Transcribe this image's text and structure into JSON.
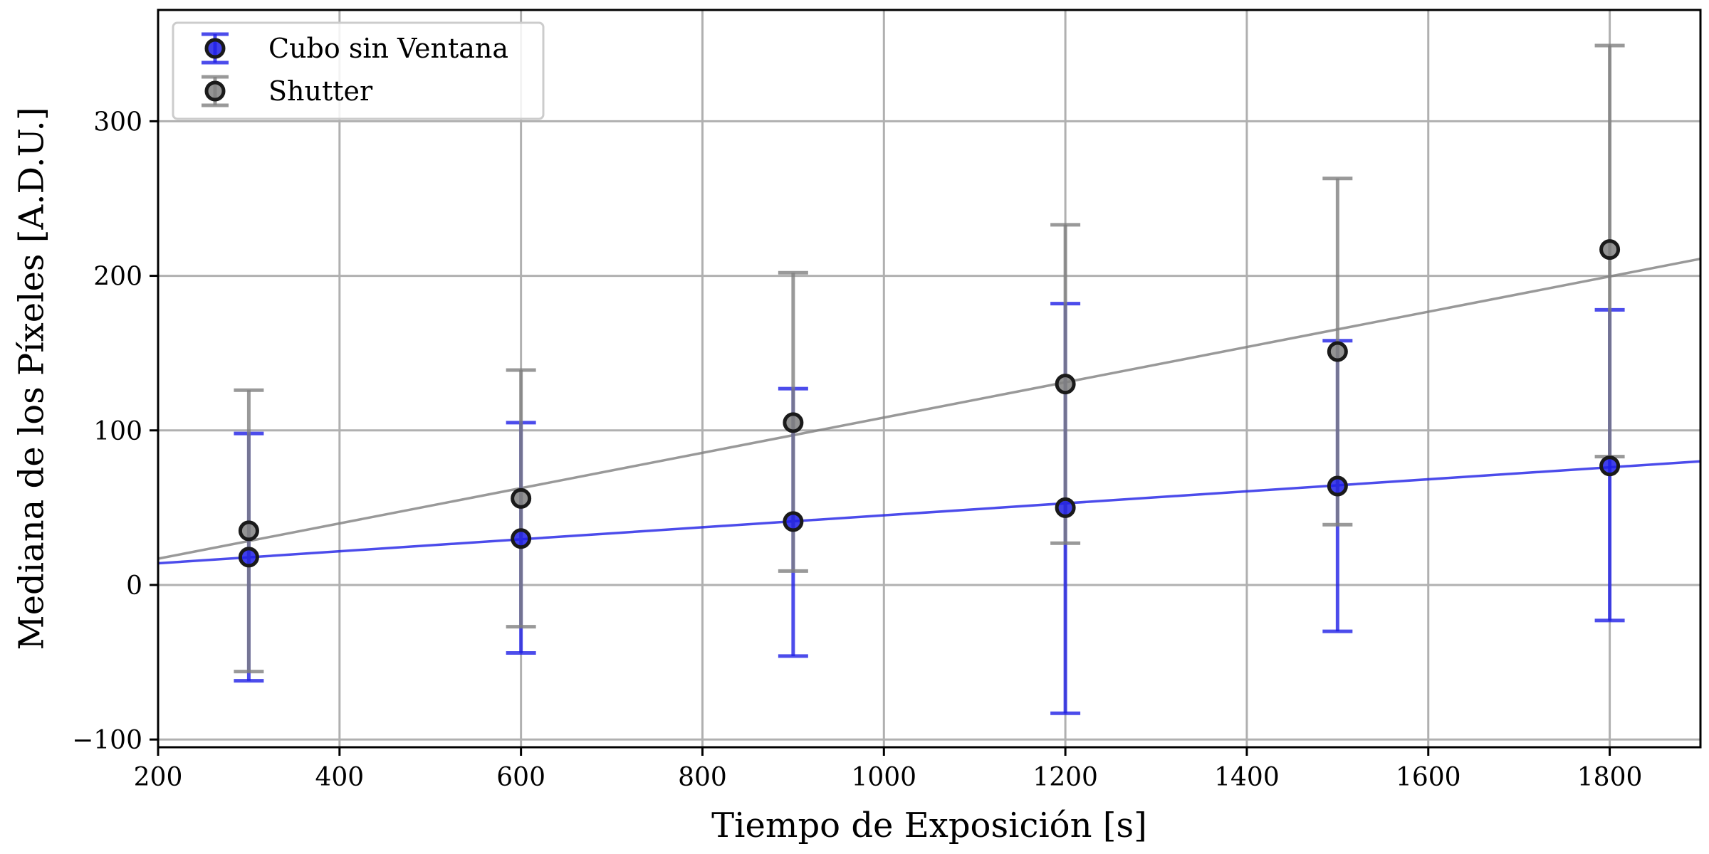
{
  "chart_data": {
    "type": "scatter",
    "title": "",
    "xlabel": "Tiempo de Exposición [s]",
    "ylabel": "Mediana de los Píxeles [A.D.U.]",
    "xlim": [
      200,
      1900
    ],
    "ylim": [
      -105,
      372
    ],
    "xticks": [
      200,
      400,
      600,
      800,
      1000,
      1200,
      1400,
      1600,
      1800
    ],
    "yticks": [
      -100,
      0,
      100,
      200,
      300
    ],
    "ytick_labels": [
      "−100",
      "0",
      "100",
      "200",
      "300"
    ],
    "grid": true,
    "legend_position": "top-left",
    "series": [
      {
        "name": "Cubo sin Ventana",
        "color": "#1f1fe6",
        "x": [
          300,
          600,
          900,
          1200,
          1500,
          1800
        ],
        "y": [
          18,
          30,
          41,
          50,
          64,
          77
        ],
        "yerr_low": [
          -62,
          -44,
          -46,
          -83,
          -30,
          -23
        ],
        "yerr_high": [
          98,
          105,
          127,
          182,
          158,
          178
        ],
        "fit": {
          "x": [
            200,
            1900
          ],
          "y": [
            14,
            80
          ]
        }
      },
      {
        "name": "Shutter",
        "color": "#808080",
        "x": [
          300,
          600,
          900,
          1200,
          1500,
          1800
        ],
        "y": [
          35,
          56,
          105,
          130,
          151,
          217
        ],
        "yerr_low": [
          -56,
          -27,
          9,
          27,
          39,
          83
        ],
        "yerr_high": [
          126,
          139,
          202,
          233,
          263,
          349
        ],
        "fit": {
          "x": [
            200,
            1900
          ],
          "y": [
            17,
            211
          ]
        }
      }
    ]
  }
}
